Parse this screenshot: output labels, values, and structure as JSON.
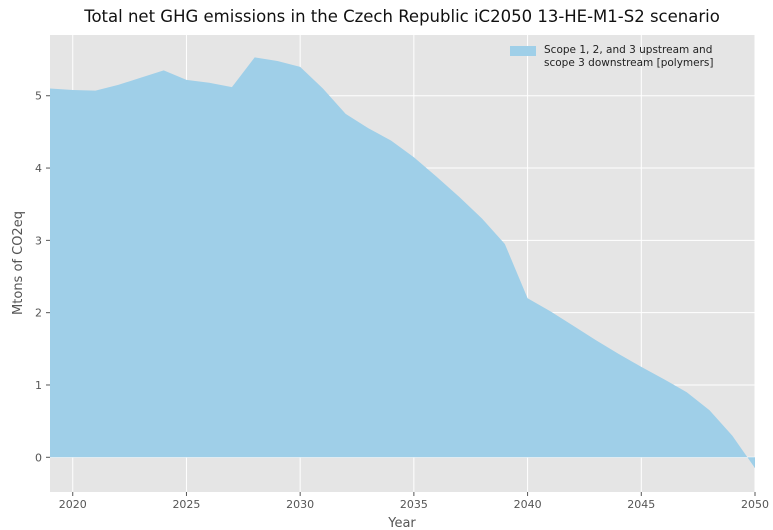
{
  "chart_data": {
    "type": "area",
    "title": "Total net GHG emissions in the Czech Republic iC2050 13-HE-M1-S2 scenario",
    "xlabel": "Year",
    "ylabel": "Mtons of CO2eq",
    "x": [
      2019,
      2020,
      2021,
      2022,
      2023,
      2024,
      2025,
      2026,
      2027,
      2028,
      2029,
      2030,
      2031,
      2032,
      2033,
      2034,
      2035,
      2036,
      2037,
      2038,
      2039,
      2040,
      2041,
      2042,
      2043,
      2044,
      2045,
      2046,
      2047,
      2048,
      2049,
      2050
    ],
    "series": [
      {
        "name": "Scope 1, 2, and 3 upstream and scope 3 downstream [polymers]",
        "color": "#9fcfe8",
        "values": [
          5.1,
          5.08,
          5.07,
          5.15,
          5.25,
          5.35,
          5.22,
          5.18,
          5.12,
          5.53,
          5.48,
          5.4,
          5.1,
          4.75,
          4.55,
          4.38,
          4.15,
          3.88,
          3.6,
          3.3,
          2.95,
          2.2,
          2.02,
          1.82,
          1.62,
          1.43,
          1.25,
          1.08,
          0.9,
          0.65,
          0.3,
          -0.15
        ]
      }
    ],
    "xlim": [
      2019,
      2050
    ],
    "ylim": [
      -0.48,
      5.84
    ],
    "xticks": [
      2020,
      2025,
      2030,
      2035,
      2040,
      2045,
      2050
    ],
    "yticks": [
      0,
      1,
      2,
      3,
      4,
      5
    ],
    "grid": true,
    "legend": "upper right"
  }
}
